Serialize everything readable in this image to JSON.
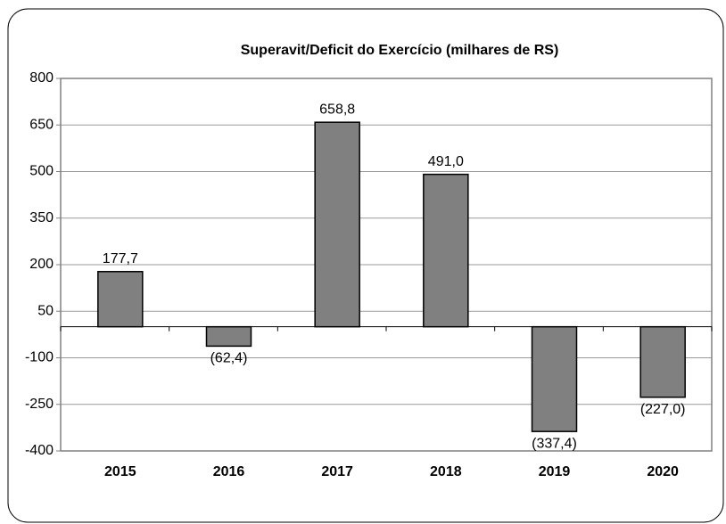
{
  "chart_data": {
    "type": "bar",
    "title": "Superavit/Deficit do Exercício (milhares de RS)",
    "categories": [
      "2015",
      "2016",
      "2017",
      "2018",
      "2019",
      "2020"
    ],
    "values": [
      177.7,
      -62.4,
      658.8,
      491.0,
      -337.4,
      -227.0
    ],
    "value_labels": [
      "177,7",
      "(62,4)",
      "658,8",
      "491,0",
      "(337,4)",
      "(227,0)"
    ],
    "color": "#808080",
    "ylim": [
      -400,
      800
    ],
    "yticks": [
      -400,
      -250,
      -100,
      50,
      200,
      350,
      500,
      650,
      800
    ],
    "grid": true
  }
}
